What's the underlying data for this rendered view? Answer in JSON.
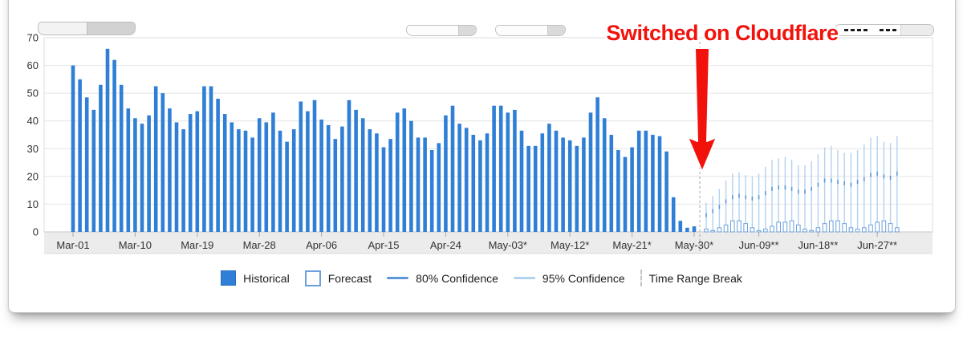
{
  "annotation": {
    "text": "Switched on Cloudflare",
    "color": "#f2120c"
  },
  "toolbar": {
    "range_slider_icon": "range-slider",
    "dropdown_buttons": 2,
    "dash_pattern_icons": [
      "dash-pattern-4-icon",
      "dash-pattern-3-icon"
    ]
  },
  "legend": [
    {
      "label": "Historical",
      "swatch": "filled-bar"
    },
    {
      "label": "Forecast",
      "swatch": "outlined-bar"
    },
    {
      "label": "80% Confidence",
      "swatch": "medium-blue-line"
    },
    {
      "label": "95% Confidence",
      "swatch": "light-blue-line"
    },
    {
      "label": "Time Range Break",
      "swatch": "dashed-vertical-line"
    }
  ],
  "chart_data": {
    "type": "bar",
    "title": "",
    "xlabel": "",
    "ylabel": "",
    "ylim": [
      0,
      70
    ],
    "y_ticks": [
      0,
      10,
      20,
      30,
      40,
      50,
      60,
      70
    ],
    "grid": "horizontal",
    "x_tick_labels": [
      "Mar-01",
      "Mar-10",
      "Mar-19",
      "Mar-28",
      "Apr-06",
      "Apr-15",
      "Apr-24",
      "May-03*",
      "May-12*",
      "May-21*",
      "May-30*",
      "Jun-09**",
      "Jun-18**",
      "Jun-27**"
    ],
    "historical": {
      "first_label": "Mar-01",
      "last_label": "May-30*",
      "values": [
        60,
        55,
        48.5,
        44,
        53,
        66,
        62,
        53,
        44.5,
        41,
        39,
        42,
        52.5,
        50,
        44.5,
        39.5,
        37,
        42.5,
        43.5,
        52.5,
        52.5,
        48,
        42.5,
        39.5,
        37,
        36.5,
        34,
        41,
        39.5,
        43,
        36.5,
        32.5,
        37,
        47,
        43.5,
        47.5,
        40.5,
        38.5,
        33.5,
        38,
        47.5,
        44,
        41,
        37,
        35.5,
        30.5,
        33.5,
        43,
        44.5,
        40,
        34,
        34,
        29.5,
        32,
        42,
        45.5,
        39,
        37.5,
        35,
        33,
        35.5,
        45.5,
        45.5,
        43,
        44,
        36.5,
        31,
        31,
        35.5,
        39,
        36.5,
        34,
        33,
        31,
        34,
        43,
        48.5,
        41,
        35,
        29.5,
        27,
        30.5,
        36.5,
        36.5,
        35,
        34.5,
        29,
        12.5,
        4,
        1.5,
        2
      ]
    },
    "forecast": {
      "first_label": "Jun-09**",
      "last_label": "Jun-27**",
      "bars": [
        1,
        0.5,
        1.5,
        2.5,
        4,
        4,
        3,
        1.5,
        0.5,
        1,
        2,
        3.5,
        3.5,
        4,
        2.5,
        1,
        0.5,
        1.5,
        3,
        4,
        4,
        3,
        1.5,
        1,
        1.5,
        2.5,
        3.5,
        4,
        3,
        1.5
      ],
      "ci80": [
        6,
        7.5,
        9,
        11,
        12.5,
        13,
        12.5,
        12,
        12.5,
        14,
        15.5,
        16,
        16,
        15.5,
        14.5,
        14.5,
        15.5,
        17,
        18.5,
        18.5,
        18,
        17.5,
        17,
        18,
        19,
        20.5,
        21,
        20,
        19.5,
        21
      ],
      "ci95": [
        10.5,
        13,
        15.5,
        18.5,
        21,
        21.5,
        20.5,
        20,
        21,
        23.5,
        26,
        26.5,
        27,
        26,
        24,
        24,
        25.5,
        28,
        30.5,
        31,
        29.5,
        28.5,
        28.5,
        29.5,
        31.5,
        34,
        34.5,
        32.5,
        32,
        34.5
      ]
    },
    "time_range_break_after": "May-30*",
    "colors": {
      "historical_bar": "#2f7fd6",
      "historical_border": "#2a6ebd",
      "forecast_outline": "#6ba0dc",
      "ci80_line": "#5d97d8",
      "ci95_line": "#b3d2ef",
      "grid_line": "#e4e4e4",
      "axis_band": "#ececec",
      "break_line": "#a5a5a5",
      "annotation_red": "#f2120c",
      "tick_text": "#333333"
    },
    "legend_position": "bottom-center"
  }
}
